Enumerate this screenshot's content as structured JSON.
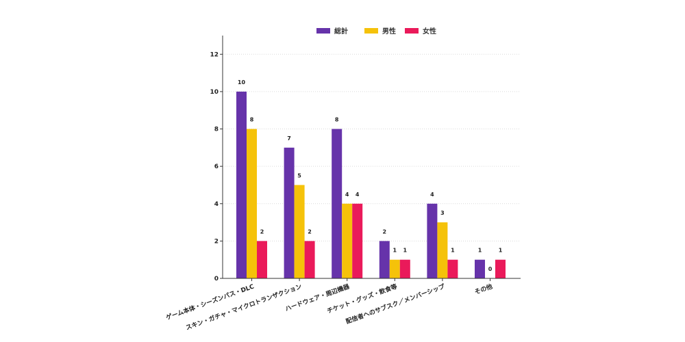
{
  "chart_data": {
    "type": "bar",
    "categories": [
      "ゲーム本体・シーズンパス・DLC",
      "スキン・ガチャ・マイクロトランザクション",
      "ハードウェア・周辺機器",
      "チケット・グッズ・飲食等",
      "配信者へのサブスク／メンバーシップ",
      "その他"
    ],
    "series": [
      {
        "name": "総計",
        "color": "#6633aa",
        "values": [
          10,
          7,
          8,
          2,
          4,
          1
        ]
      },
      {
        "name": "男性",
        "color": "#f5c20a",
        "values": [
          8,
          5,
          4,
          1,
          3,
          0
        ]
      },
      {
        "name": "女性",
        "color": "#ea1a5a",
        "values": [
          2,
          2,
          4,
          1,
          1,
          1
        ]
      }
    ],
    "yticks": [
      "0",
      "2",
      "4",
      "6",
      "8",
      "10",
      "12"
    ],
    "ylim": [
      0,
      13
    ],
    "grid": true,
    "legend_position": "top-center",
    "title": "",
    "xlabel": "",
    "ylabel": ""
  }
}
